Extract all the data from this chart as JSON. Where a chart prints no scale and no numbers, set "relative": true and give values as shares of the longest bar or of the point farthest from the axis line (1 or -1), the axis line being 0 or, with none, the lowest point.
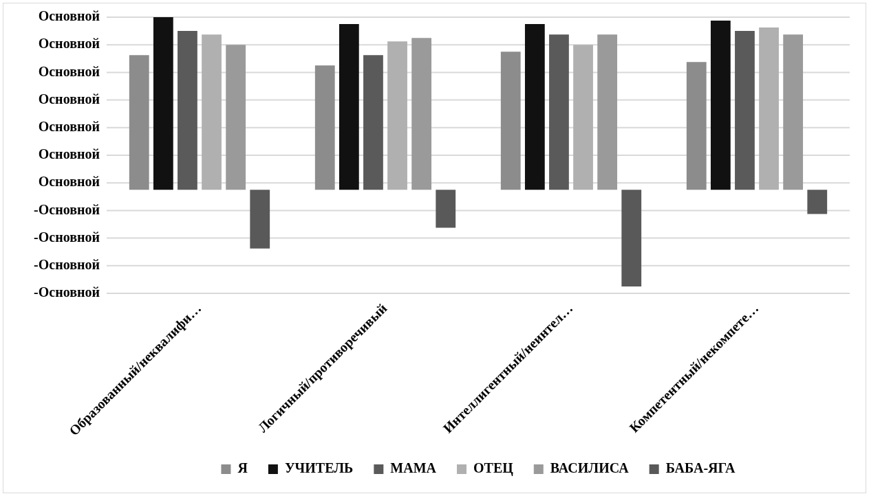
{
  "chart_data": {
    "type": "bar",
    "categories": [
      "Образованный/неквалифи…",
      "Логичный/противоречивый",
      "Интеллигентный/неинтел…",
      "Компетентный/некомпете…"
    ],
    "series": [
      {
        "name": "Я",
        "color": "#8c8c8c",
        "values": [
          0.78,
          0.72,
          0.8,
          0.74
        ]
      },
      {
        "name": "УЧИТЕЛЬ",
        "color": "#111111",
        "values": [
          1,
          0.96,
          0.96,
          0.98
        ]
      },
      {
        "name": "МАМА",
        "color": "#5a5a5a",
        "values": [
          0.92,
          0.78,
          0.9,
          0.92
        ]
      },
      {
        "name": "ОТЕЦ",
        "color": "#b0b0b0",
        "values": [
          0.9,
          0.86,
          0.84,
          0.94
        ]
      },
      {
        "name": "ВАСИЛИСА",
        "color": "#9a9a9a",
        "values": [
          0.84,
          0.88,
          0.9,
          0.9
        ]
      },
      {
        "name": "БАБА-ЯГА",
        "color": "#595959",
        "values": [
          -0.34,
          -0.22,
          -0.56,
          -0.14
        ]
      }
    ],
    "relative": true,
    "annotations": [
      "Основной",
      "Основной",
      "Основной",
      "Основной",
      "Основной",
      "Основной",
      "Основной",
      "-Основной",
      "-Основной",
      "-Основной",
      "-Основной"
    ],
    "legend": "bottom"
  }
}
